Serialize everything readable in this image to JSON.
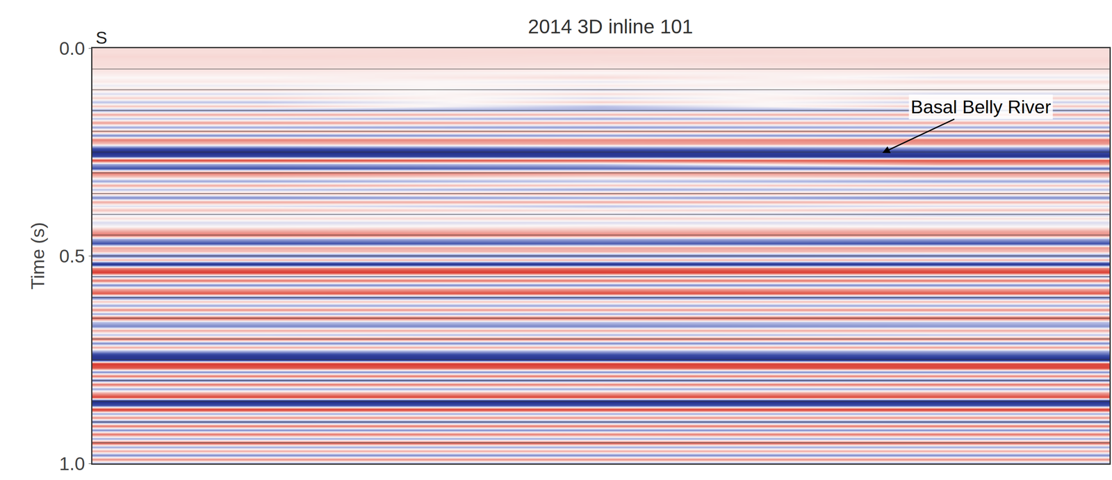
{
  "chart_data": {
    "type": "heatmap",
    "title": "2014 3D inline 101",
    "y_label": "Time (s)",
    "direction_label": "S",
    "tick_labels": "y",
    "grid": true,
    "grid_lines": [
      0.05,
      0.1,
      0.15,
      0.2,
      0.25,
      0.3,
      0.35,
      0.4,
      0.45,
      0.5,
      0.55,
      0.6,
      0.65,
      0.7,
      0.75,
      0.8,
      0.85,
      0.9,
      0.95
    ],
    "xlim": [
      -0.5,
      2.5
    ],
    "ylim": [
      1.0,
      0.0
    ],
    "yticks": [
      {
        "value": 0,
        "label": "0.0"
      },
      {
        "value": 0.5,
        "label": "0.5"
      },
      {
        "value": 1,
        "label": "1.0"
      }
    ],
    "color_range": [
      -1,
      1
    ],
    "annotations": [
      {
        "text": "Basal Belly River",
        "x": 1.83,
        "y": 0.252,
        "text_x": 2.12,
        "text_y": 0.141
      }
    ],
    "x": [
      0,
      1,
      2
    ],
    "y": [
      0,
      0.01,
      0.02,
      0.03,
      0.04,
      0.05,
      0.06,
      0.07,
      0.08,
      0.09,
      0.1,
      0.11,
      0.12,
      0.13,
      0.14,
      0.15,
      0.16,
      0.17,
      0.18,
      0.19,
      0.2,
      0.21,
      0.22,
      0.23,
      0.24,
      0.25,
      0.26,
      0.27,
      0.28,
      0.29,
      0.3,
      0.31,
      0.32,
      0.33,
      0.34,
      0.35,
      0.36,
      0.37,
      0.38,
      0.39,
      0.4,
      0.41,
      0.42,
      0.43,
      0.44,
      0.45,
      0.46,
      0.47,
      0.48,
      0.49,
      0.5,
      0.51,
      0.52,
      0.53,
      0.54,
      0.55,
      0.56,
      0.57,
      0.58,
      0.59,
      0.6,
      0.61,
      0.62,
      0.63,
      0.64,
      0.65,
      0.66,
      0.67,
      0.68,
      0.69,
      0.7,
      0.71,
      0.72,
      0.73,
      0.74,
      0.75,
      0.76,
      0.77,
      0.78,
      0.79,
      0.8,
      0.81,
      0.82,
      0.83,
      0.84,
      0.85,
      0.86,
      0.87,
      0.88,
      0.89,
      0.9,
      0.91,
      0.92,
      0.93,
      0.94,
      0.95,
      0.96,
      0.97,
      0.98,
      0.99,
      1.0
    ],
    "z": [
      [
        0.1,
        0.1,
        0.1
      ],
      [
        0.1,
        0.12,
        0.1
      ],
      [
        0.12,
        0.1,
        0.1
      ],
      [
        0.1,
        0.1,
        0.12
      ],
      [
        0.1,
        0.08,
        0.1
      ],
      [
        0.08,
        0.06,
        0.08
      ],
      [
        0.05,
        0.0,
        0.05
      ],
      [
        0.0,
        0.1,
        -0.05
      ],
      [
        0.05,
        -0.05,
        0.1
      ],
      [
        -0.05,
        0.05,
        0.0
      ],
      [
        0.1,
        -0.1,
        0.05
      ],
      [
        -0.1,
        0.1,
        -0.1
      ],
      [
        0.15,
        -0.1,
        0.15
      ],
      [
        -0.2,
        0.15,
        -0.15
      ],
      [
        0.2,
        -0.2,
        0.2
      ],
      [
        -0.3,
        -0.25,
        -0.3
      ],
      [
        0.3,
        0.25,
        0.3
      ],
      [
        -0.2,
        -0.3,
        -0.2
      ],
      [
        0.35,
        0.3,
        0.3
      ],
      [
        -0.3,
        -0.35,
        -0.3
      ],
      [
        0.3,
        0.3,
        0.35
      ],
      [
        -0.4,
        -0.35,
        -0.4
      ],
      [
        0.45,
        0.4,
        0.45
      ],
      [
        0.2,
        0.3,
        0.35
      ],
      [
        -0.5,
        -0.4,
        -0.3
      ],
      [
        -1.0,
        -0.9,
        -0.7
      ],
      [
        -0.7,
        -0.8,
        -0.9
      ],
      [
        0.7,
        0.6,
        0.6
      ],
      [
        -0.3,
        -0.2,
        0.3
      ],
      [
        -0.6,
        -0.5,
        -0.5
      ],
      [
        0.5,
        0.4,
        0.4
      ],
      [
        0.2,
        0.1,
        0.2
      ],
      [
        -0.3,
        -0.2,
        -0.3
      ],
      [
        0.3,
        0.2,
        0.2
      ],
      [
        -0.2,
        -0.3,
        -0.2
      ],
      [
        0.2,
        0.3,
        0.2
      ],
      [
        -0.4,
        -0.3,
        -0.4
      ],
      [
        0.3,
        0.3,
        0.25
      ],
      [
        -0.1,
        -0.2,
        -0.1
      ],
      [
        0.2,
        0.1,
        0.2
      ],
      [
        -0.1,
        -0.1,
        -0.2
      ],
      [
        0.1,
        0.15,
        0.1
      ],
      [
        -0.1,
        -0.1,
        -0.1
      ],
      [
        0.0,
        0.05,
        0.0
      ],
      [
        0.3,
        0.25,
        0.3
      ],
      [
        0.5,
        0.45,
        0.4
      ],
      [
        -0.3,
        -0.3,
        -0.3
      ],
      [
        -0.6,
        -0.55,
        -0.6
      ],
      [
        0.3,
        0.3,
        0.35
      ],
      [
        0.2,
        0.25,
        0.2
      ],
      [
        -0.5,
        -0.5,
        -0.45
      ],
      [
        0.3,
        0.3,
        0.3
      ],
      [
        -0.9,
        -0.9,
        -0.85
      ],
      [
        0.4,
        0.45,
        0.4
      ],
      [
        0.8,
        0.8,
        0.75
      ],
      [
        -0.3,
        -0.3,
        -0.35
      ],
      [
        0.5,
        0.5,
        0.5
      ],
      [
        -0.4,
        -0.4,
        -0.4
      ],
      [
        0.3,
        0.35,
        0.3
      ],
      [
        0.6,
        0.65,
        0.6
      ],
      [
        -0.5,
        -0.5,
        -0.5
      ],
      [
        0.2,
        0.2,
        0.25
      ],
      [
        -0.3,
        -0.3,
        -0.3
      ],
      [
        0.4,
        0.35,
        0.4
      ],
      [
        -0.3,
        -0.3,
        -0.25
      ],
      [
        0.6,
        0.55,
        0.6
      ],
      [
        -0.2,
        -0.2,
        -0.2
      ],
      [
        -0.4,
        -0.4,
        -0.35
      ],
      [
        0.3,
        0.3,
        0.3
      ],
      [
        -0.2,
        -0.25,
        -0.2
      ],
      [
        0.5,
        0.5,
        0.45
      ],
      [
        -0.4,
        -0.4,
        -0.4
      ],
      [
        0.3,
        0.3,
        0.35
      ],
      [
        -0.3,
        -0.3,
        -0.3
      ],
      [
        -0.8,
        -0.7,
        -0.6
      ],
      [
        -0.9,
        -0.9,
        -1.0
      ],
      [
        0.8,
        0.8,
        0.7
      ],
      [
        0.6,
        0.6,
        0.7
      ],
      [
        -0.4,
        -0.4,
        -0.4
      ],
      [
        0.5,
        0.5,
        0.45
      ],
      [
        -0.5,
        -0.5,
        -0.5
      ],
      [
        0.5,
        0.45,
        0.5
      ],
      [
        -0.3,
        -0.3,
        -0.3
      ],
      [
        0.3,
        0.3,
        0.35
      ],
      [
        0.7,
        0.7,
        0.65
      ],
      [
        -1.0,
        -1.0,
        -0.95
      ],
      [
        -0.6,
        -0.6,
        -0.6
      ],
      [
        0.8,
        0.75,
        0.8
      ],
      [
        -0.3,
        -0.3,
        -0.3
      ],
      [
        0.4,
        0.4,
        0.4
      ],
      [
        -0.5,
        -0.45,
        -0.5
      ],
      [
        0.5,
        0.5,
        0.5
      ],
      [
        -0.4,
        -0.4,
        -0.4
      ],
      [
        0.5,
        0.45,
        0.5
      ],
      [
        -0.3,
        -0.3,
        -0.3
      ],
      [
        0.6,
        0.6,
        0.55
      ],
      [
        -0.3,
        -0.3,
        -0.3
      ],
      [
        0.3,
        0.3,
        0.3
      ],
      [
        -0.4,
        -0.4,
        -0.4
      ],
      [
        0.4,
        0.4,
        0.4
      ],
      [
        -0.3,
        -0.3,
        -0.3
      ]
    ]
  }
}
